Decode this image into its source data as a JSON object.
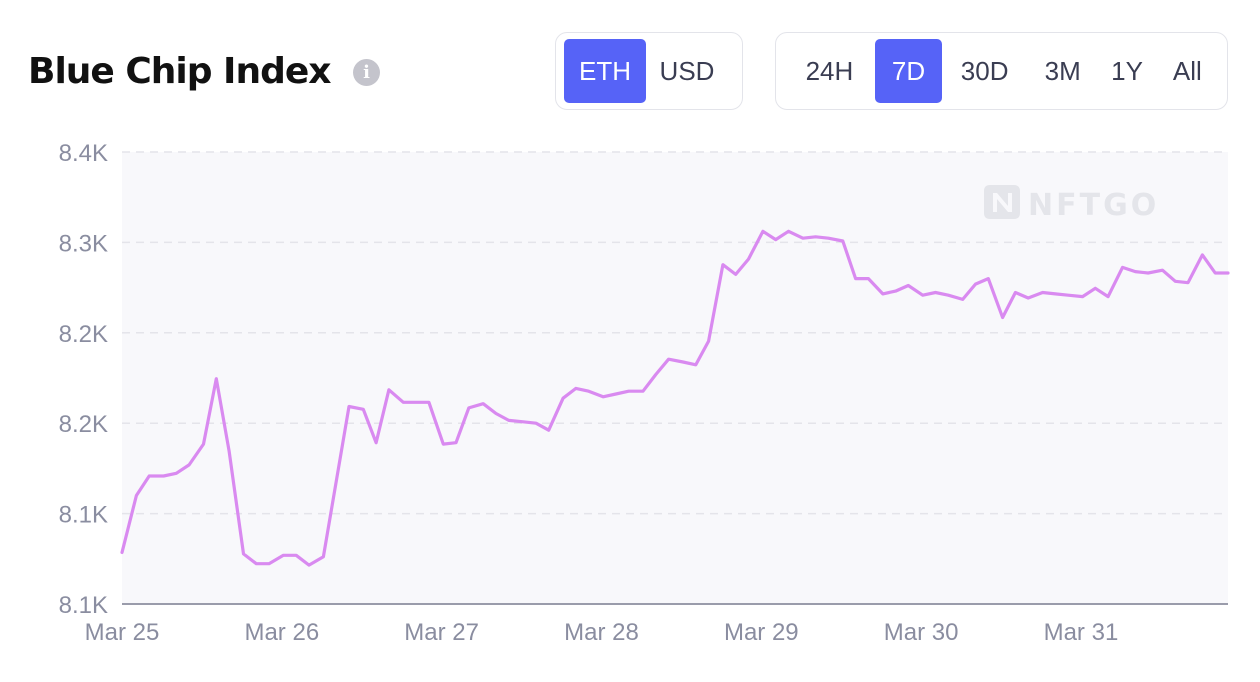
{
  "header": {
    "title": "Blue Chip Index",
    "info_icon": "info-icon"
  },
  "currency_toggle": {
    "options": [
      "ETH",
      "USD"
    ],
    "selected": "ETH"
  },
  "range_toggle": {
    "options": [
      "24H",
      "7D",
      "30D",
      "3M",
      "1Y",
      "All"
    ],
    "selected": "7D"
  },
  "watermark": "NFTGO",
  "colors": {
    "line": "#d98af0",
    "accent": "#5663f7",
    "plot_background": "#f8f8fb",
    "grid": "#e4e4ea",
    "axis_text": "#8a8da0"
  },
  "chart_data": {
    "type": "line",
    "title": "Blue Chip Index",
    "xlabel": "",
    "ylabel": "",
    "y_tick_labels": [
      "8.1K",
      "8.1K",
      "8.2K",
      "8.2K",
      "8.3K",
      "8.4K"
    ],
    "x_tick_labels": [
      "Mar 25",
      "Mar 26",
      "Mar 27",
      "Mar 28",
      "Mar 29",
      "Mar 30",
      "Mar 31"
    ],
    "xlim": [
      0,
      6.92
    ],
    "ylim": [
      8075,
      8400
    ],
    "grid": true,
    "series": [
      {
        "color": "#d98af0",
        "x": [
          0.0,
          0.09,
          0.17,
          0.26,
          0.34,
          0.42,
          0.51,
          0.59,
          0.67,
          0.76,
          0.84,
          0.92,
          1.01,
          1.09,
          1.17,
          1.26,
          1.34,
          1.42,
          1.51,
          1.59,
          1.67,
          1.76,
          1.84,
          1.92,
          2.01,
          2.09,
          2.17,
          2.26,
          2.34,
          2.42,
          2.51,
          2.59,
          2.67,
          2.76,
          2.84,
          2.92,
          3.01,
          3.09,
          3.17,
          3.26,
          3.34,
          3.42,
          3.51,
          3.59,
          3.67,
          3.76,
          3.84,
          3.92,
          4.01,
          4.09,
          4.17,
          4.26,
          4.34,
          4.42,
          4.51,
          4.59,
          4.67,
          4.76,
          4.84,
          4.92,
          5.01,
          5.09,
          5.17,
          5.26,
          5.34,
          5.42,
          5.51,
          5.59,
          5.67,
          5.76,
          5.84,
          5.92,
          6.01,
          6.09,
          6.17,
          6.26,
          6.34,
          6.42,
          6.51,
          6.59,
          6.67,
          6.76,
          6.84,
          6.92
        ],
        "values": [
          8112,
          8153,
          8167,
          8167,
          8169,
          8175,
          8190,
          8237,
          8185,
          8111,
          8104,
          8104,
          8110,
          8110,
          8103,
          8109,
          8163,
          8217,
          8215,
          8191,
          8229,
          8220,
          8220,
          8220,
          8190,
          8191,
          8216,
          8219,
          8212,
          8207,
          8206,
          8205,
          8200,
          8223,
          8230,
          8228,
          8224,
          8226,
          8228,
          8228,
          8240,
          8251,
          8249,
          8247,
          8264,
          8319,
          8312,
          8323,
          8343,
          8337,
          8343,
          8338,
          8339,
          8338,
          8336,
          8309,
          8309,
          8298,
          8300,
          8304,
          8297,
          8299,
          8297,
          8294,
          8305,
          8309,
          8281,
          8299,
          8295,
          8299,
          8298,
          8297,
          8296,
          8302,
          8296,
          8317,
          8314,
          8313,
          8315,
          8307,
          8306,
          8326,
          8313,
          8313
        ]
      }
    ]
  }
}
